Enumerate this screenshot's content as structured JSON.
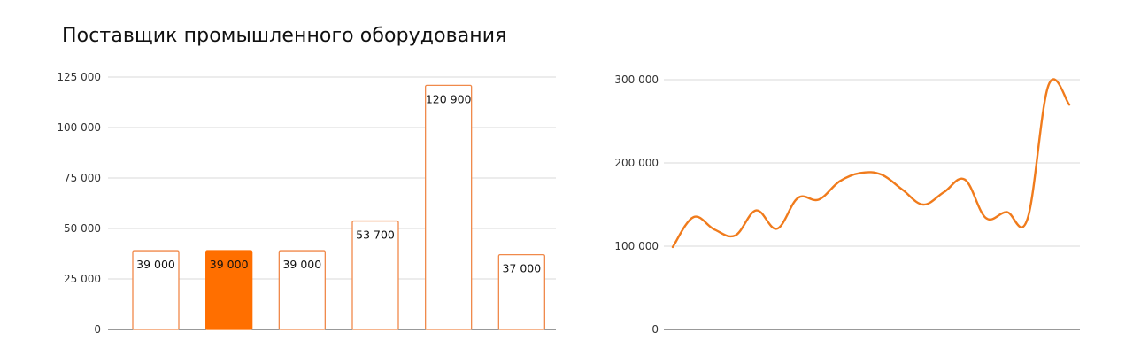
{
  "title": "Поставщик промышленного оборудования",
  "colors": {
    "accent": "#ff6f00",
    "bar_outline": "#f0894a",
    "line": "#f07b1c",
    "grid": "#d9d9d9"
  },
  "chart_data": [
    {
      "type": "bar",
      "title": "",
      "xlabel": "",
      "ylabel": "",
      "ylim": [
        0,
        125000
      ],
      "yticks": [
        "0",
        "25 000",
        "50 000",
        "75 000",
        "100 000",
        "125 000"
      ],
      "grid": true,
      "categories": [
        "",
        "",
        "",
        "",
        "",
        ""
      ],
      "values": [
        39000,
        39000,
        39000,
        53700,
        120900,
        37000
      ],
      "labels": [
        "39 000",
        "39 000",
        "39 000",
        "53 700",
        "120 900",
        "37 000"
      ],
      "highlighted_index": 1
    },
    {
      "type": "line",
      "title": "",
      "xlabel": "",
      "ylabel": "",
      "ylim": [
        0,
        300000
      ],
      "yticks": [
        "0",
        "100 000",
        "200 000",
        "300 000"
      ],
      "grid": true,
      "smooth": true,
      "values": [
        99000,
        135000,
        120000,
        113000,
        143000,
        121000,
        158000,
        156000,
        178000,
        188000,
        186000,
        168000,
        150000,
        165000,
        180000,
        134000,
        141000,
        133000,
        293000,
        270000
      ]
    }
  ]
}
